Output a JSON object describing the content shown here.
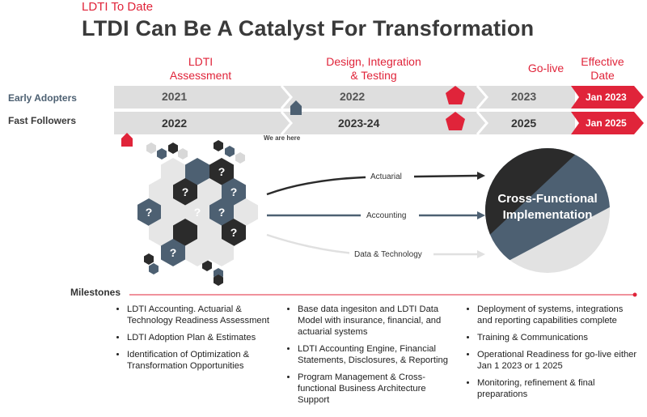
{
  "header": {
    "kicker": "LDTI To Date",
    "title": "LTDI Can Be A Catalyst For Transformation"
  },
  "phases": {
    "assessment": [
      "LDTI",
      "Assessment"
    ],
    "design": [
      "Design, Integration",
      "& Testing"
    ],
    "golive": "Go-live",
    "effective": [
      "Effective",
      "Date"
    ]
  },
  "rows": {
    "early": {
      "label": "Early Adopters",
      "years": [
        "2021",
        "2022",
        "2023"
      ],
      "date": "Jan 2023"
    },
    "fast": {
      "label": "Fast Followers",
      "years": [
        "2022",
        "2023-24",
        "2025"
      ],
      "date": "Jan 2025"
    }
  },
  "we_are_here": "We are here",
  "flows": {
    "actuarial": "Actuarial",
    "accounting": "Accounting",
    "data": "Data & Technology"
  },
  "circle_label": [
    "Cross-Functional",
    "Implementation"
  ],
  "milestones": {
    "label": "Milestones",
    "columns": [
      [
        "LDTI Accounting. Actuarial & Technology Readiness Assessment",
        "LDTI Adoption Plan & Estimates",
        "Identification of Optimization & Transformation Opportunities"
      ],
      [
        "Base data ingesiton and LDTI Data Model with insurance, financial, and actuarial systems",
        "LDTI Accounting Engine, Financial Statements, Disclosures, & Reporting",
        "Program Management & Cross-functional Business Architecture Support"
      ],
      [
        "Deployment of systems, integrations and reporting capabilities complete",
        "Training & Communications",
        "Operational Readiness for go-live either Jan 1 2023 or 1 2025",
        "Monitoring, refinement & final preparations"
      ]
    ]
  },
  "colors": {
    "accent": "#e0243a",
    "slate": "#4d6072",
    "dark": "#2b2b2b",
    "light": "#dedede"
  }
}
